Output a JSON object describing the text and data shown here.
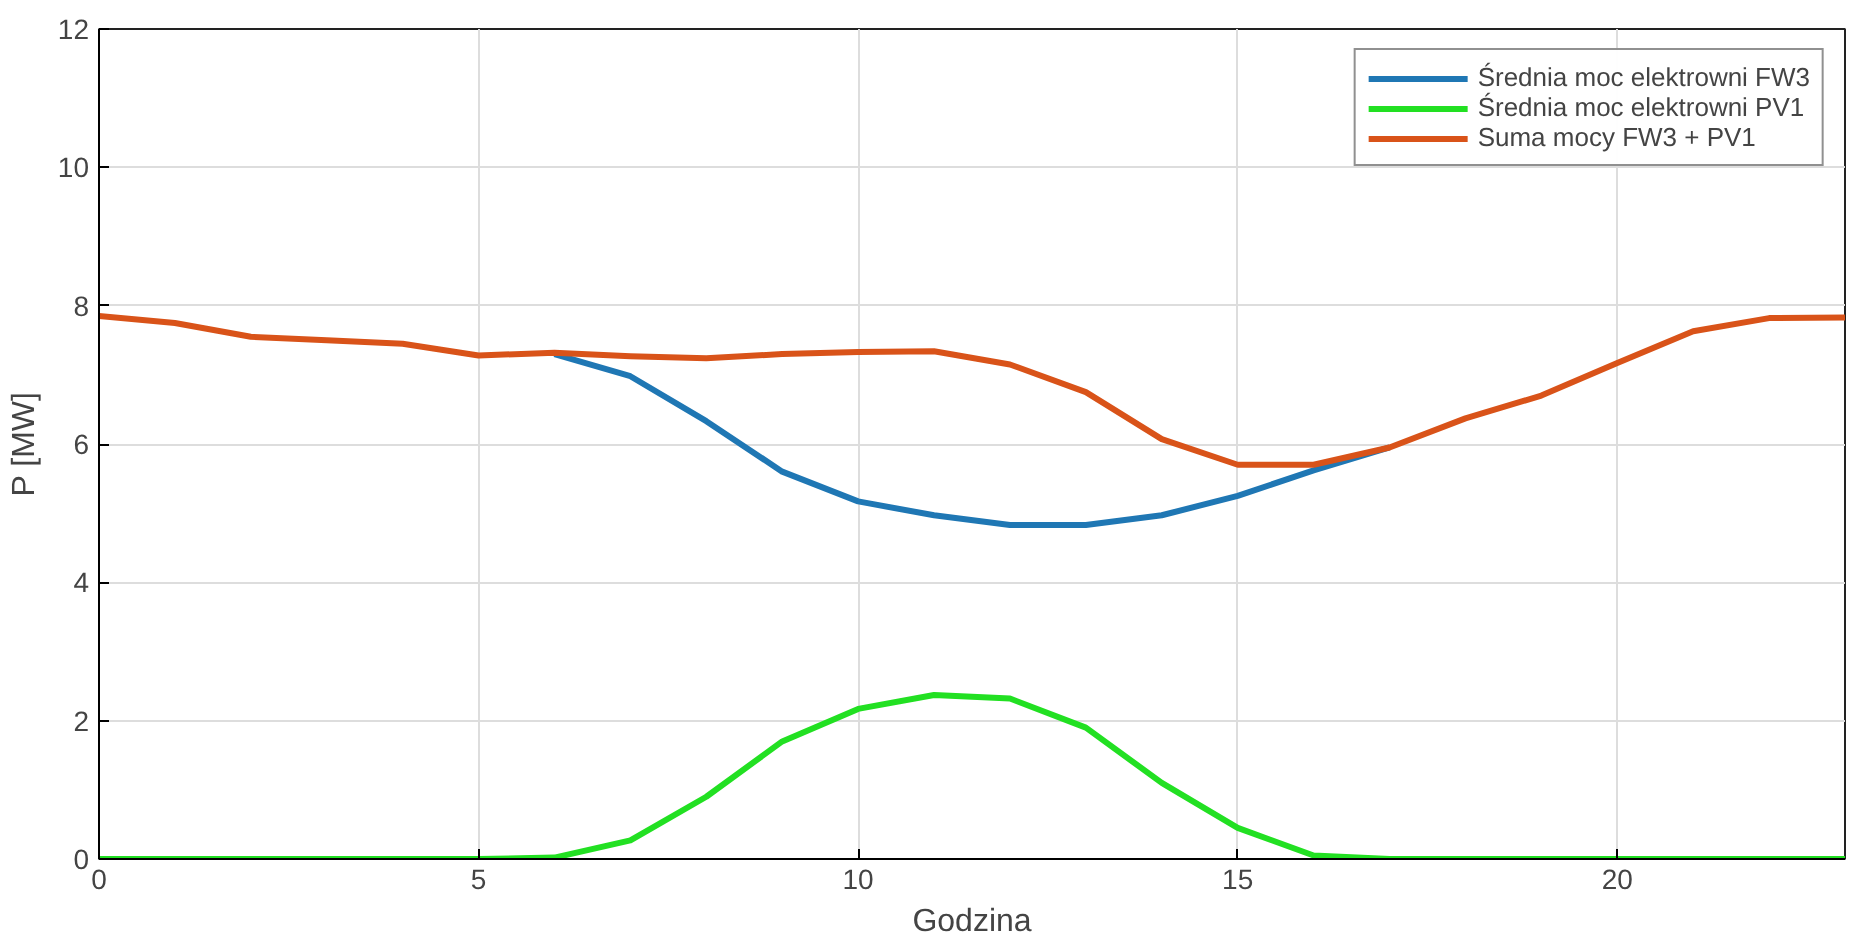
{
  "chart_data": {
    "type": "line",
    "xlabel": "Godzina",
    "ylabel": "P [MW]",
    "x": [
      0,
      1,
      2,
      3,
      4,
      5,
      6,
      7,
      8,
      9,
      10,
      11,
      12,
      13,
      14,
      15,
      16,
      17,
      18,
      19,
      20,
      21,
      22,
      23
    ],
    "xlim": [
      0,
      23
    ],
    "xticks": [
      0,
      5,
      10,
      15,
      20
    ],
    "ylim": [
      0,
      12
    ],
    "yticks": [
      0,
      2,
      4,
      6,
      8,
      10,
      12
    ],
    "grid": true,
    "legend": "top right",
    "marker": "none",
    "line_style": "solid",
    "series": [
      {
        "name": "Średnia moc elektrowni FW3",
        "color": "#1f77b4",
        "values": [
          null,
          null,
          null,
          null,
          null,
          null,
          7.3,
          6.98,
          6.33,
          5.6,
          5.17,
          4.97,
          4.83,
          4.83,
          4.97,
          5.25,
          5.62,
          5.95,
          null,
          null,
          null,
          null,
          null,
          null
        ]
      },
      {
        "name": "Średnia moc elektrowni PV1",
        "color": "#22e022",
        "values": [
          0,
          0,
          0,
          0,
          0,
          0,
          0.02,
          0.27,
          0.9,
          1.7,
          2.17,
          2.37,
          2.32,
          1.9,
          1.1,
          0.45,
          0.05,
          0,
          0,
          0,
          0,
          0,
          0,
          0
        ]
      },
      {
        "name": "Suma mocy FW3 + PV1",
        "color": "#d95319",
        "values": [
          7.85,
          7.75,
          7.55,
          7.5,
          7.45,
          7.28,
          7.32,
          7.27,
          7.24,
          7.3,
          7.33,
          7.34,
          7.15,
          6.75,
          6.07,
          5.7,
          5.7,
          5.95,
          6.37,
          6.7,
          7.17,
          7.63,
          7.82,
          7.83
        ]
      }
    ]
  }
}
